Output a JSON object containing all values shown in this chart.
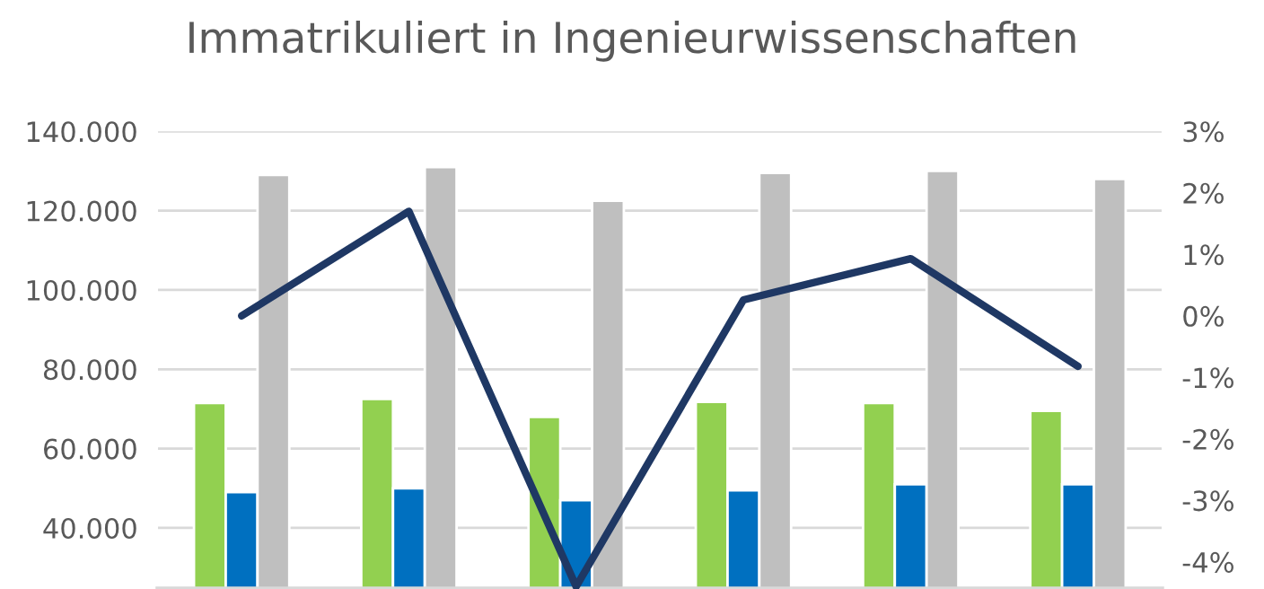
{
  "chart_data": {
    "type": "bar",
    "title": "Immatrikuliert in Ingenieurwissenschaften",
    "categories": [
      null,
      null,
      null,
      null,
      null,
      null
    ],
    "series": [
      {
        "color": "#92d050",
        "values": [
          71500,
          72500,
          68000,
          71800,
          71500,
          69500
        ]
      },
      {
        "color": "#0070c0",
        "values": [
          49000,
          50000,
          47000,
          49500,
          51000,
          51000
        ]
      },
      {
        "color": "#bfbfbf",
        "values": [
          129000,
          131000,
          122500,
          129500,
          130000,
          128000
        ]
      },
      {
        "type": "line",
        "axis": "y2",
        "color": "#1f3864",
        "values": [
          0.0,
          1.7,
          -4.4,
          0.26,
          0.93,
          -0.82
        ]
      }
    ],
    "ylim": [
      24600,
      140000
    ],
    "yticks": [
      {
        "value": 40000,
        "label": "40.000"
      },
      {
        "value": 60000,
        "label": "60.000"
      },
      {
        "value": 80000,
        "label": "80.000"
      },
      {
        "value": 100000,
        "label": "100.000"
      },
      {
        "value": 120000,
        "label": "120.000"
      },
      {
        "value": 140000,
        "label": "140.000"
      }
    ],
    "y2lim": [
      -4.44,
      3
    ],
    "y2ticks": [
      {
        "value": -4,
        "label": "-4%"
      },
      {
        "value": -3,
        "label": "-3%"
      },
      {
        "value": -2,
        "label": "-2%"
      },
      {
        "value": -1,
        "label": "-1%"
      },
      {
        "value": 0,
        "label": "0%"
      },
      {
        "value": 1,
        "label": "1%"
      },
      {
        "value": 2,
        "label": "2%"
      },
      {
        "value": 3,
        "label": "3%"
      }
    ],
    "grid": "y"
  }
}
